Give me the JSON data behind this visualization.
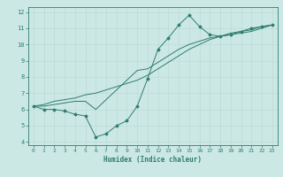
{
  "xlabel": "Humidex (Indice chaleur)",
  "x_data": [
    0,
    1,
    2,
    3,
    4,
    5,
    6,
    7,
    8,
    9,
    10,
    11,
    12,
    13,
    14,
    15,
    16,
    17,
    18,
    19,
    20,
    21,
    22,
    23
  ],
  "line1_y": [
    6.2,
    6.0,
    6.0,
    5.9,
    5.7,
    5.6,
    4.3,
    4.5,
    5.0,
    5.3,
    6.2,
    7.9,
    9.7,
    10.4,
    11.2,
    11.8,
    11.1,
    10.6,
    10.5,
    10.6,
    10.8,
    11.0,
    11.1,
    11.2
  ],
  "line2_y": [
    6.2,
    6.2,
    6.3,
    6.4,
    6.5,
    6.5,
    6.0,
    6.6,
    7.2,
    7.8,
    8.4,
    8.5,
    8.9,
    9.3,
    9.7,
    10.0,
    10.2,
    10.4,
    10.5,
    10.6,
    10.7,
    10.8,
    11.0,
    11.2
  ],
  "line3_y": [
    6.2,
    6.3,
    6.5,
    6.6,
    6.7,
    6.9,
    7.0,
    7.2,
    7.4,
    7.6,
    7.8,
    8.1,
    8.5,
    8.9,
    9.3,
    9.7,
    10.0,
    10.3,
    10.5,
    10.7,
    10.8,
    10.9,
    11.1,
    11.2
  ],
  "line_color": "#2E7D6E",
  "bg_color": "#CCE8E4",
  "grid_color": "#BBDBD7",
  "axis_color": "#2E7D6E",
  "ylim": [
    3.8,
    12.3
  ],
  "xlim": [
    -0.5,
    23.5
  ],
  "yticks": [
    4,
    5,
    6,
    7,
    8,
    9,
    10,
    11,
    12
  ],
  "xticks": [
    0,
    1,
    2,
    3,
    4,
    5,
    6,
    7,
    8,
    9,
    10,
    11,
    12,
    13,
    14,
    15,
    16,
    17,
    18,
    19,
    20,
    21,
    22,
    23
  ]
}
